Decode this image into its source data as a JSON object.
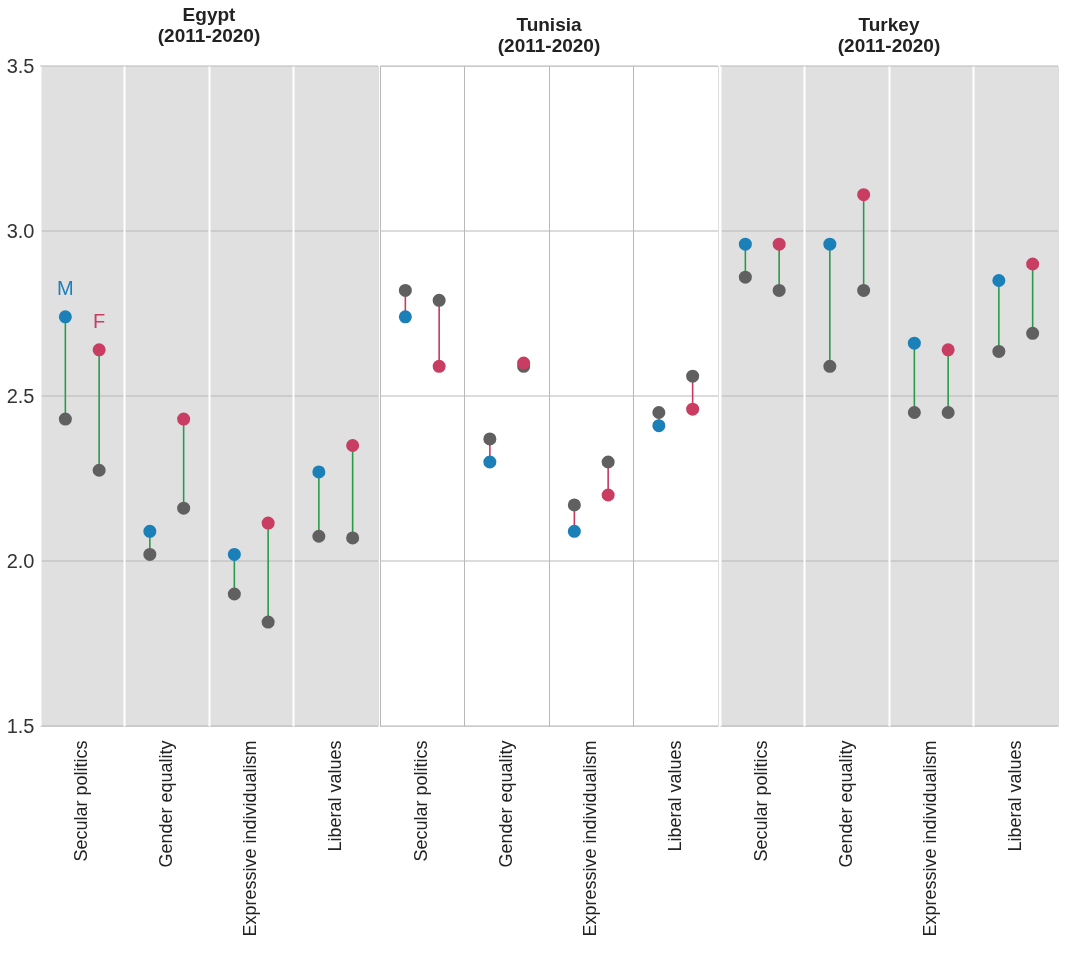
{
  "chart_data": [
    {
      "type": "scatter",
      "title": "Egypt\n(2011-2020)",
      "categories": [
        "Secular politics",
        "Gender equality",
        "Expressive individualism",
        "Liberal values"
      ],
      "marker": "circle",
      "grid": true,
      "ylim": [
        1.5,
        3.5
      ],
      "yticks": [
        1.5,
        {
          "value": 2,
          "label": "2.0"
        },
        2.5,
        {
          "value": 3,
          "label": "3.0"
        },
        3.5
      ],
      "bands": [
        {
          "axis": "y",
          "from": 1.5,
          "to": 3.5,
          "color": "#e0e0e0"
        }
      ],
      "series": [
        {
          "color": "#606060",
          "values": [
            2.43,
            2.02,
            1.9,
            2.075
          ]
        },
        {
          "name": "M",
          "color": "#1b7fb8",
          "values": [
            2.74,
            2.09,
            2.02,
            2.27
          ]
        },
        {
          "color": "#606060",
          "values": [
            2.275,
            2.16,
            1.815,
            2.07
          ]
        },
        {
          "name": "F",
          "color": "#c93d63",
          "values": [
            2.64,
            2.43,
            2.115,
            2.35
          ]
        }
      ]
    },
    {
      "type": "scatter",
      "title": "Tunisia\n(2011-2020)",
      "categories": [
        "Secular politics",
        "Gender equality",
        "Expressive individualism",
        "Liberal values"
      ],
      "marker": "circle",
      "grid": true,
      "tick_labels": "x",
      "ylim": [
        1.5,
        3.5
      ],
      "yticks": [
        1.5,
        2,
        2.5,
        3,
        3.5
      ],
      "series": [
        {
          "color": "#606060",
          "values": [
            2.82,
            2.37,
            2.17,
            2.45
          ]
        },
        {
          "color": "#1b7fb8",
          "values": [
            2.74,
            2.3,
            2.09,
            2.41
          ]
        },
        {
          "color": "#606060",
          "values": [
            2.79,
            2.59,
            2.3,
            2.56
          ]
        },
        {
          "color": "#c93d63",
          "values": [
            2.59,
            2.6,
            2.2,
            2.46
          ]
        }
      ]
    },
    {
      "type": "scatter",
      "title": "Turkey\n(2011-2020)",
      "categories": [
        "Secular politics",
        "Gender equality",
        "Expressive individualism",
        "Liberal values"
      ],
      "marker": "circle",
      "grid": true,
      "tick_labels": "x",
      "ylim": [
        1.5,
        3.5
      ],
      "yticks": [
        1.5,
        2,
        2.5,
        3,
        3.5
      ],
      "bands": [
        {
          "axis": "y",
          "from": 1.5,
          "to": 3.5,
          "color": "#e0e0e0"
        }
      ],
      "series": [
        {
          "color": "#606060",
          "values": [
            2.86,
            2.59,
            2.45,
            2.635
          ]
        },
        {
          "color": "#1b7fb8",
          "values": [
            2.96,
            2.96,
            2.66,
            2.85
          ]
        },
        {
          "color": "#606060",
          "values": [
            2.82,
            2.82,
            2.45,
            2.69
          ]
        },
        {
          "color": "#c93d63",
          "values": [
            2.96,
            3.11,
            2.64,
            2.9
          ]
        }
      ]
    }
  ]
}
